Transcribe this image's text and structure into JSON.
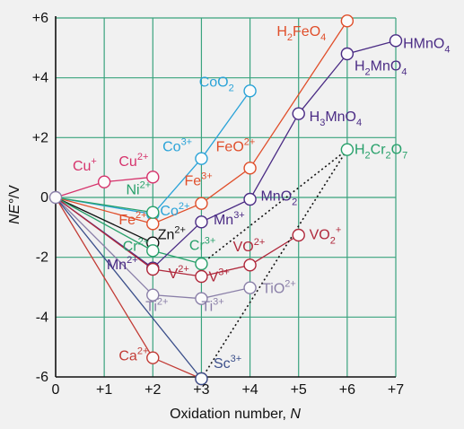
{
  "chart_data": {
    "type": "scatter",
    "title": "",
    "xlabel_main": "Oxidation number, ",
    "xlabel_var": "N",
    "ylabel": "NE°/V",
    "xlim": [
      0,
      7
    ],
    "ylim": [
      -6,
      6
    ],
    "x_ticks": [
      "0",
      "+1",
      "+2",
      "+3",
      "+4",
      "+5",
      "+6",
      "+7"
    ],
    "y_ticks": [
      "+6",
      "+4",
      "+2",
      "0",
      "-2",
      "-4",
      "-6"
    ],
    "grid": true,
    "colors": {
      "grid": "#3aa37e",
      "axis": "#111111",
      "Cu": "#d6336c",
      "Co": "#2aa3d8",
      "Fe": "#e04e2a",
      "Ni": "#27a06a",
      "Zn": "#111111",
      "Cr": "#27a06a",
      "Mn": "#4b2c85",
      "V": "#b0283b",
      "Ti": "#8a7fa8",
      "Ca": "#c23b35",
      "Sc": "#3a4e8a"
    },
    "series": [
      {
        "element": "Cu",
        "x": [
          0,
          1,
          2
        ],
        "y": [
          0,
          0.52,
          0.68
        ]
      },
      {
        "element": "Co",
        "x": [
          0,
          2,
          3,
          4
        ],
        "y": [
          0,
          -0.56,
          1.3,
          3.56
        ]
      },
      {
        "element": "Fe",
        "x": [
          0,
          2,
          3,
          4,
          6
        ],
        "y": [
          0,
          -0.88,
          -0.2,
          0.98,
          5.9
        ]
      },
      {
        "element": "Ni",
        "x": [
          0,
          2
        ],
        "y": [
          0,
          -0.5
        ]
      },
      {
        "element": "Zn",
        "x": [
          0,
          2
        ],
        "y": [
          0,
          -1.52
        ]
      },
      {
        "element": "Cr",
        "x": [
          0,
          2,
          3,
          6
        ],
        "y": [
          0,
          -1.78,
          -2.22,
          1.6
        ],
        "dotted_last": true
      },
      {
        "element": "Mn",
        "x": [
          0,
          2,
          3,
          4,
          5,
          6,
          7
        ],
        "y": [
          0,
          -2.36,
          -0.82,
          -0.06,
          2.8,
          4.8,
          5.24
        ]
      },
      {
        "element": "V",
        "x": [
          0,
          2,
          3,
          4,
          5
        ],
        "y": [
          0,
          -2.4,
          -2.64,
          -2.26,
          -1.26
        ]
      },
      {
        "element": "Ti",
        "x": [
          0,
          2,
          3,
          4
        ],
        "y": [
          0,
          -3.26,
          -3.38,
          -3.02
        ]
      },
      {
        "element": "Ca",
        "x": [
          0,
          2,
          3
        ],
        "y": [
          0,
          -5.36,
          -6.06
        ]
      },
      {
        "element": "Sc",
        "x": [
          0,
          3
        ],
        "y": [
          0,
          -6.06
        ]
      }
    ],
    "sc_cr_dotted": {
      "x": [
        3,
        6
      ],
      "y": [
        -6.06,
        1.6
      ]
    },
    "labels": [
      {
        "id": "cu_plus",
        "base": "Cu",
        "sup": "+",
        "sub": "",
        "tail": "",
        "x": 0.35,
        "y": 0.9,
        "color_key": "Cu"
      },
      {
        "id": "cu_2plus",
        "base": "Cu",
        "sup": "2+",
        "sub": "",
        "tail": "",
        "x": 1.3,
        "y": 1.05,
        "color_key": "Cu"
      },
      {
        "id": "co_3plus",
        "base": "Co",
        "sup": "3+",
        "sub": "",
        "tail": "",
        "x": 2.2,
        "y": 1.55,
        "color_key": "Co"
      },
      {
        "id": "coo2",
        "base": "CoO",
        "sup": "",
        "sub": "2",
        "tail": "",
        "x": 2.95,
        "y": 3.7,
        "color_key": "Co"
      },
      {
        "id": "co_2plus",
        "base": "Co",
        "sup": "2+",
        "sub": "",
        "tail": "",
        "x": 2.15,
        "y": -0.6,
        "color_key": "Co"
      },
      {
        "id": "ni_2plus",
        "base": "Ni",
        "sup": "2+",
        "sub": "",
        "tail": "",
        "x": 1.45,
        "y": 0.1,
        "color_key": "Ni"
      },
      {
        "id": "fe_2plus",
        "base": "Fe",
        "sup": "2+",
        "sub": "",
        "tail": "",
        "x": 1.3,
        "y": -0.9,
        "color_key": "Fe"
      },
      {
        "id": "fe_3plus",
        "base": "Fe",
        "sup": "3+",
        "sub": "",
        "tail": "",
        "x": 2.65,
        "y": 0.4,
        "color_key": "Fe"
      },
      {
        "id": "feo_2plus",
        "base": "FeO",
        "sup": "2+",
        "sub": "",
        "tail": "",
        "x": 3.3,
        "y": 1.55,
        "color_key": "Fe"
      },
      {
        "id": "h2feo4",
        "base": "H",
        "sub": "2",
        "mid": "FeO",
        "sub2": "4",
        "x": 4.55,
        "y": 5.4,
        "color_key": "Fe"
      },
      {
        "id": "zn_2plus",
        "base": "Zn",
        "sup": "2+",
        "sub": "",
        "tail": "",
        "x": 2.1,
        "y": -1.4,
        "color_key": "Zn"
      },
      {
        "id": "cr_2plus",
        "base": "Cr",
        "sup": "2+",
        "sub": "",
        "tail": "",
        "x": 1.38,
        "y": -1.78,
        "color_key": "Cr"
      },
      {
        "id": "cr_3plus",
        "base": "Cr",
        "sup": "3+",
        "sub": "",
        "tail": "",
        "x": 2.75,
        "y": -1.75,
        "color_key": "Cr"
      },
      {
        "id": "h2cr2o7",
        "base": "H",
        "sub": "2",
        "mid": "Cr",
        "sub2": "2",
        "mid2": "O",
        "sub3": "7",
        "x": 6.15,
        "y": 1.45,
        "color_key": "Cr"
      },
      {
        "id": "mn_2plus",
        "base": "Mn",
        "sup": "2+",
        "sub": "",
        "tail": "",
        "x": 1.05,
        "y": -2.4,
        "color_key": "Mn"
      },
      {
        "id": "mn_3plus",
        "base": "Mn",
        "sup": "3+",
        "sub": "",
        "tail": "",
        "x": 3.25,
        "y": -0.9,
        "color_key": "Mn"
      },
      {
        "id": "mno2",
        "base": "MnO",
        "sup": "",
        "sub": "2",
        "tail": "",
        "x": 4.22,
        "y": -0.1,
        "color_key": "Mn"
      },
      {
        "id": "h3mno4",
        "base": "H",
        "sub": "3",
        "mid": "MnO",
        "sub2": "4",
        "x": 5.22,
        "y": 2.55,
        "color_key": "Mn"
      },
      {
        "id": "h2mno4",
        "base": "H",
        "sub": "2",
        "mid": "MnO",
        "sub2": "4",
        "x": 6.15,
        "y": 4.25,
        "color_key": "Mn"
      },
      {
        "id": "hmno4",
        "base": "HMnO",
        "sup": "",
        "sub": "4",
        "tail": "",
        "x": 7.15,
        "y": 5.0,
        "color_key": "Mn"
      },
      {
        "id": "v_2plus",
        "base": "V",
        "sup": "2+",
        "sub": "",
        "tail": "",
        "x": 2.32,
        "y": -2.7,
        "color_key": "V"
      },
      {
        "id": "v_3plus",
        "base": "V",
        "sup": "3+",
        "sub": "",
        "tail": "",
        "x": 3.15,
        "y": -2.8,
        "color_key": "V"
      },
      {
        "id": "vo_2plus",
        "base": "VO",
        "sup": "2+",
        "sub": "",
        "tail": "",
        "x": 3.65,
        "y": -1.8,
        "color_key": "V"
      },
      {
        "id": "vo2_plus",
        "base": "VO",
        "sup": "+",
        "sub": "2",
        "tail": "",
        "x": 5.22,
        "y": -1.4,
        "color_key": "V"
      },
      {
        "id": "ti_2plus",
        "base": "Ti",
        "sup": "2+",
        "sub": "",
        "tail": "",
        "x": 1.85,
        "y": -3.8,
        "color_key": "Ti"
      },
      {
        "id": "ti_3plus",
        "base": "Ti",
        "sup": "3+",
        "sub": "",
        "tail": "",
        "x": 3.0,
        "y": -3.8,
        "color_key": "Ti"
      },
      {
        "id": "tio_2plus",
        "base": "TiO",
        "sup": "2+",
        "sub": "",
        "tail": "",
        "x": 4.25,
        "y": -3.2,
        "color_key": "Ti"
      },
      {
        "id": "ca_2plus",
        "base": "Ca",
        "sup": "2+",
        "sub": "",
        "tail": "",
        "x": 1.3,
        "y": -5.45,
        "color_key": "Ca"
      },
      {
        "id": "sc_3plus",
        "base": "Sc",
        "sup": "3+",
        "sub": "",
        "tail": "",
        "x": 3.25,
        "y": -5.7,
        "color_key": "Sc"
      }
    ]
  }
}
